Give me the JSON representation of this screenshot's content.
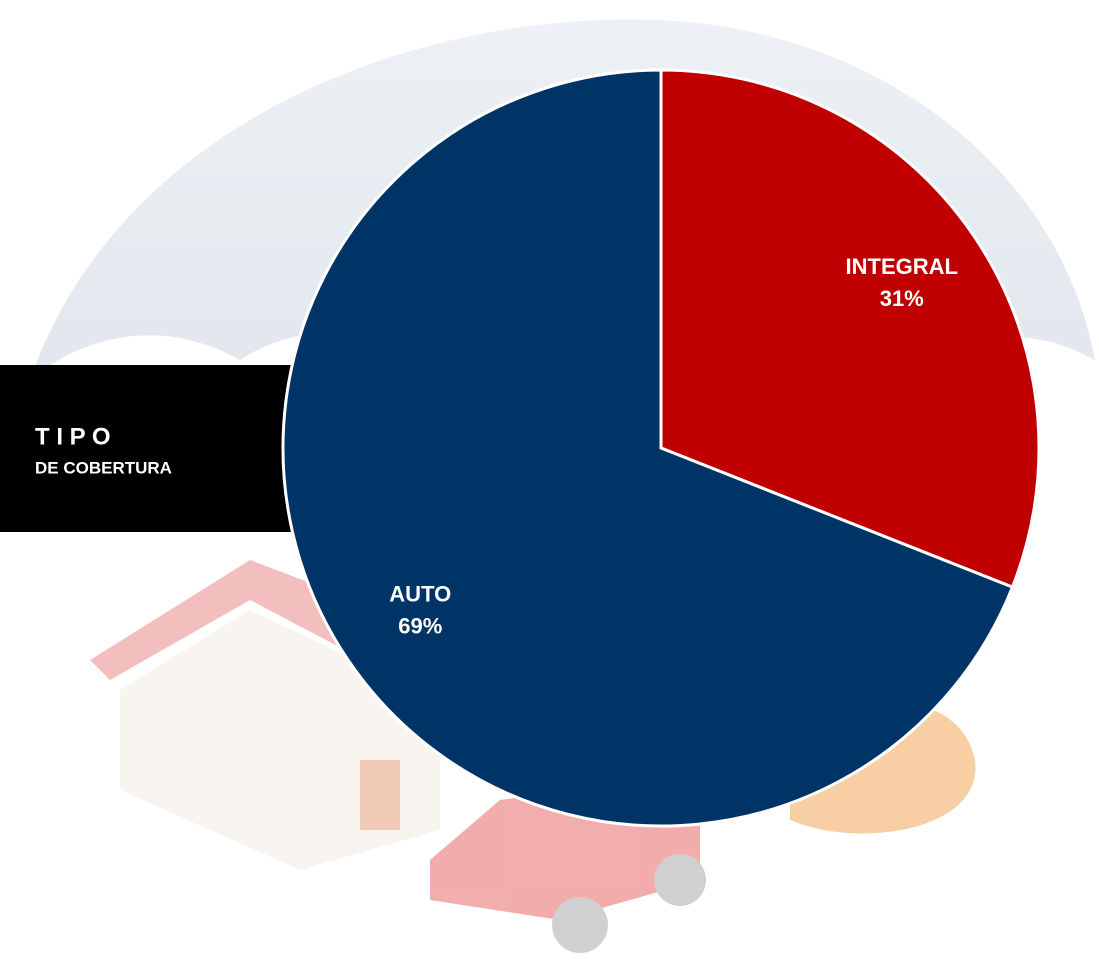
{
  "chart_data": {
    "type": "pie",
    "title": "T I P O",
    "subtitle": "DE COBERTURA",
    "categories": [
      "INTEGRAL",
      "AUTO"
    ],
    "values": [
      31,
      69
    ],
    "value_labels": [
      "31%",
      "69%"
    ],
    "colors": [
      "#c00000",
      "#003366"
    ]
  }
}
